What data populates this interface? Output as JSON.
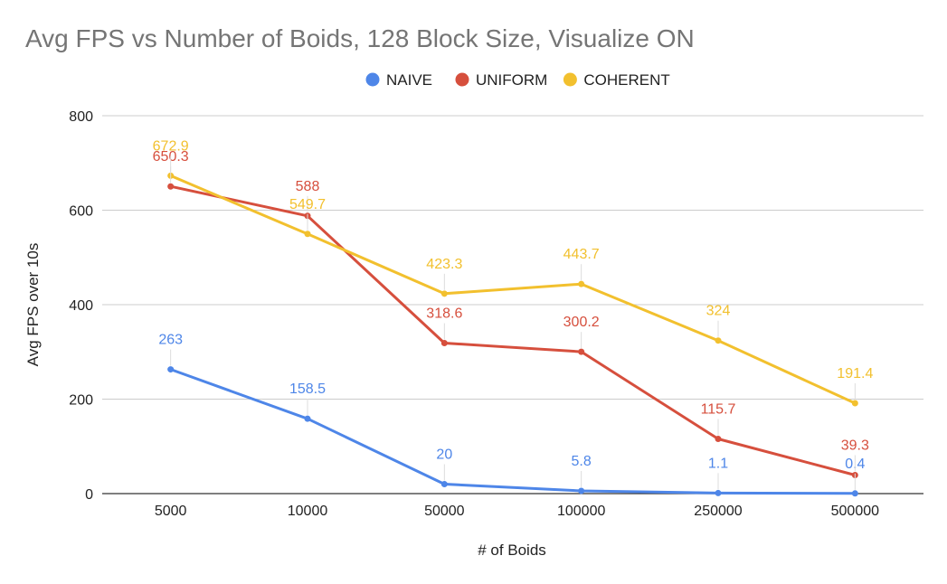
{
  "chart_data": {
    "type": "line",
    "title": "Avg FPS vs Number of Boids, 128 Block Size, Visualize ON",
    "xlabel": "# of Boids",
    "ylabel": "Avg FPS over 10s",
    "categories": [
      "5000",
      "10000",
      "50000",
      "100000",
      "250000",
      "500000"
    ],
    "ylim": [
      0,
      800
    ],
    "yticks": [
      0,
      200,
      400,
      600,
      800
    ],
    "grid": true,
    "legend_position": "top-center",
    "series": [
      {
        "name": "NAIVE",
        "color": "#4e86e8",
        "values": [
          263,
          158.5,
          20,
          5.8,
          1.1,
          0.4
        ],
        "labels": [
          "263",
          "158.5",
          "20",
          "5.8",
          "1.1",
          "0.4"
        ]
      },
      {
        "name": "UNIFORM",
        "color": "#d64f3d",
        "values": [
          650.3,
          588,
          318.6,
          300.2,
          115.7,
          39.3
        ],
        "labels": [
          "650.3",
          "588",
          "318.6",
          "300.2",
          "115.7",
          "39.3"
        ]
      },
      {
        "name": "COHERENT",
        "color": "#f2c02e",
        "values": [
          672.9,
          549.7,
          423.3,
          443.7,
          324,
          191.4
        ],
        "labels": [
          "672.9",
          "549.7",
          "423.3",
          "443.7",
          "324",
          "191.4"
        ]
      }
    ]
  }
}
